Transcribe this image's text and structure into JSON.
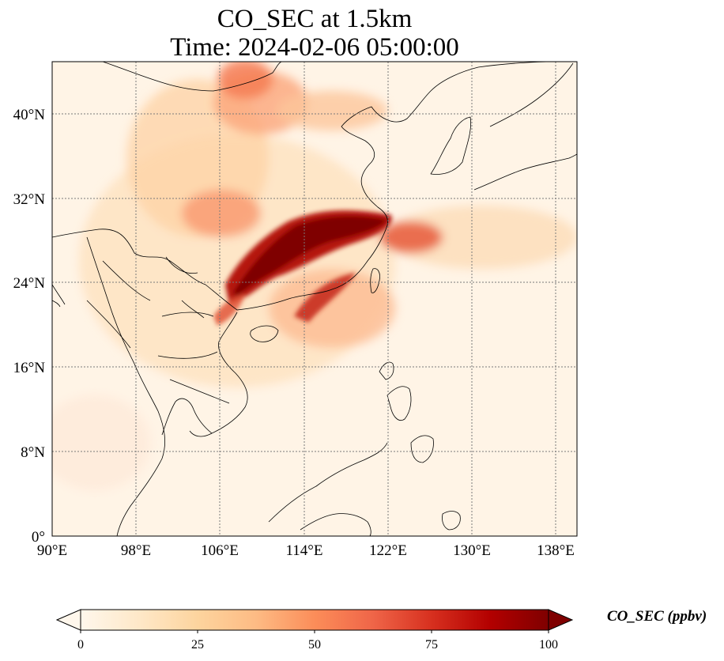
{
  "title_line1": "CO_SEC at 1.5km",
  "title_line2": "Time: 2024-02-06 05:00:00",
  "map": {
    "lon_range": [
      90,
      140
    ],
    "lat_range": [
      0,
      45
    ],
    "lon_ticks": [
      "90°E",
      "98°E",
      "106°E",
      "114°E",
      "122°E",
      "130°E",
      "138°E"
    ],
    "lat_ticks": [
      "0°",
      "8°N",
      "16°N",
      "24°N",
      "32°N",
      "40°N"
    ],
    "gridlines": true,
    "colormap": "OrRd"
  },
  "colorbar": {
    "label": "CO_SEC (ppbv)",
    "ticks": [
      "0",
      "25",
      "50",
      "75",
      "100"
    ],
    "range": [
      0,
      100
    ],
    "extend": "both",
    "colors": [
      "#fff7ec",
      "#fee8c8",
      "#fdd49e",
      "#fdbb84",
      "#fc8d59",
      "#ef6548",
      "#d7301f",
      "#b30000",
      "#7f0000"
    ]
  }
}
